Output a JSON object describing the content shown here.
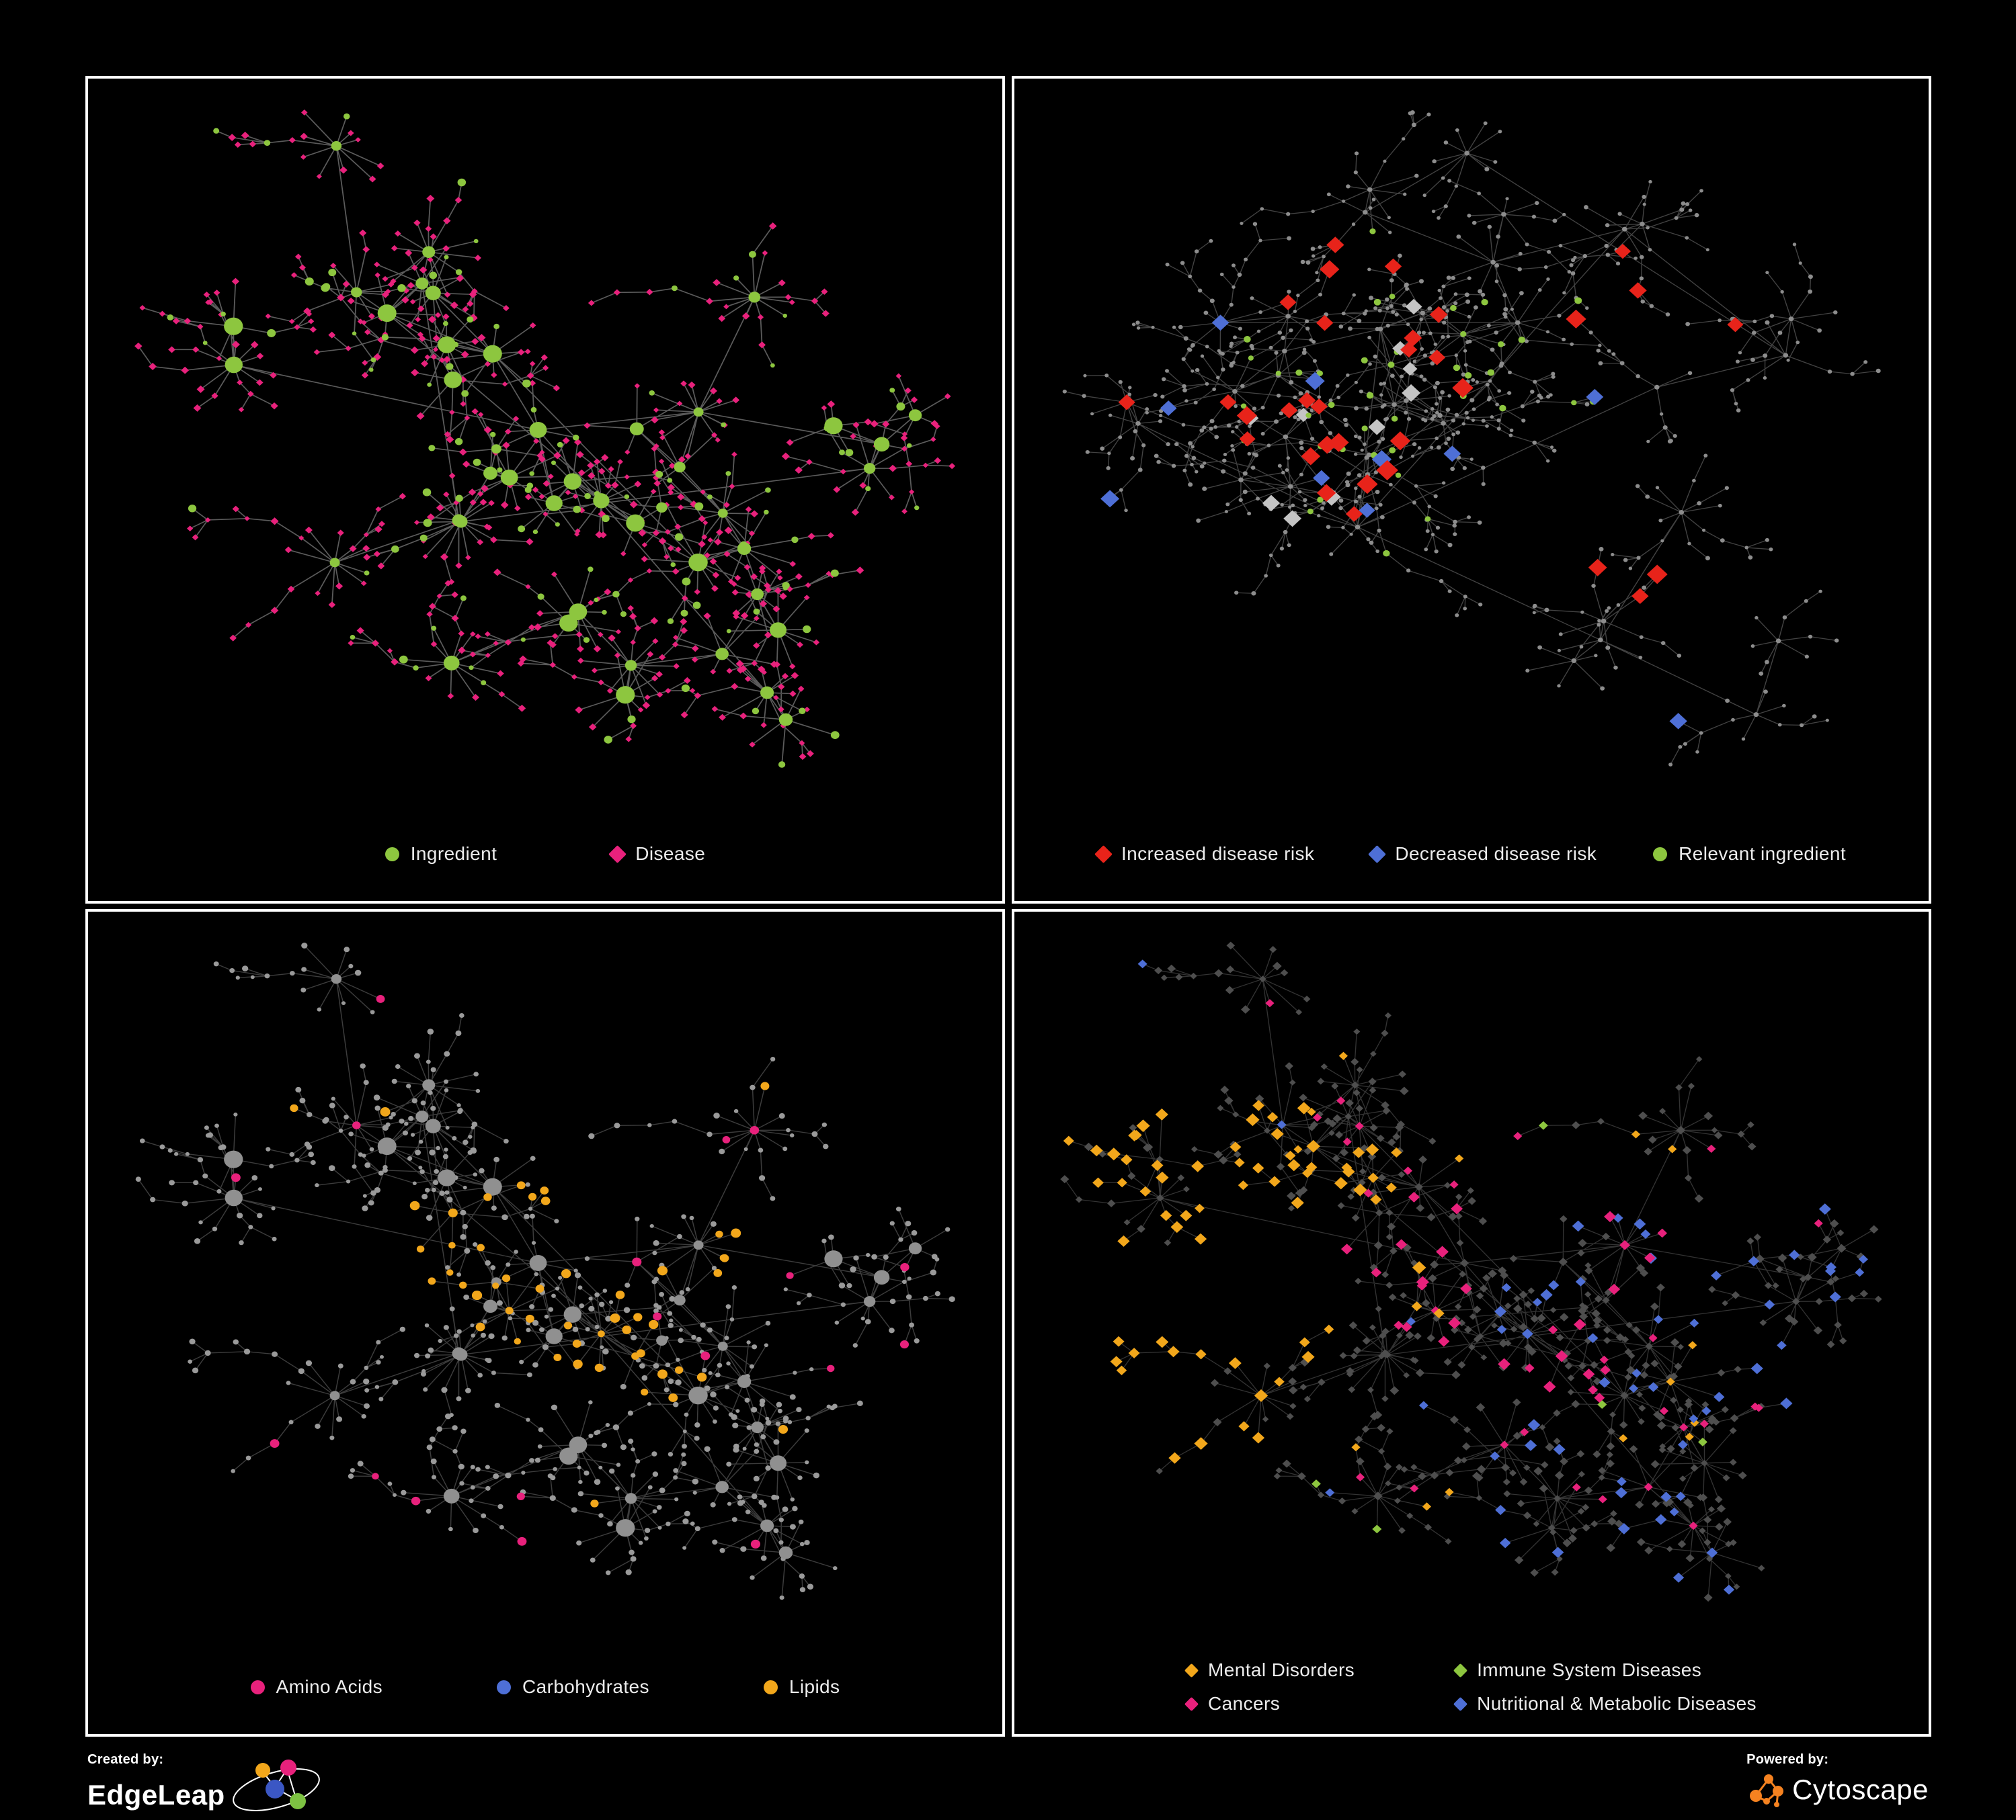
{
  "colors": {
    "background": "#000000",
    "panel_border": "#ffffff",
    "green": "#8dc63f",
    "pink": "#e8217c",
    "red": "#e8231a",
    "blue": "#4e6fd6",
    "orange": "#f2a71b",
    "silver": "#c4c4c4",
    "gray_node": "#9a9a9a",
    "dark_gray_node": "#4e4e4e",
    "legend_text": "#ececec",
    "cytoscape_orange": "#f58220"
  },
  "panels": [
    {
      "name": "ingredient-disease",
      "legend": [
        {
          "label": "Ingredient",
          "shape": "circle",
          "color": "#8dc63f"
        },
        {
          "label": "Disease",
          "shape": "diamond",
          "color": "#e8217c"
        }
      ]
    },
    {
      "name": "disease-risk",
      "legend": [
        {
          "label": "Increased disease risk",
          "shape": "diamond",
          "color": "#e8231a"
        },
        {
          "label": "Decreased disease risk",
          "shape": "diamond",
          "color": "#4e6fd6"
        },
        {
          "label": "Relevant ingredient",
          "shape": "circle",
          "color": "#8dc63f"
        }
      ]
    },
    {
      "name": "macronutrients",
      "legend": [
        {
          "label": "Amino Acids",
          "shape": "circle",
          "color": "#e8217c"
        },
        {
          "label": "Carbohydrates",
          "shape": "circle",
          "color": "#4e6fd6"
        },
        {
          "label": "Lipids",
          "shape": "circle",
          "color": "#f2a71b"
        }
      ]
    },
    {
      "name": "disease-classes",
      "legend": [
        {
          "label": "Mental Disorders",
          "shape": "diamond",
          "color": "#f2a71b"
        },
        {
          "label": "Immune System Diseases",
          "shape": "diamond",
          "color": "#8dc63f"
        },
        {
          "label": "Cancers",
          "shape": "diamond",
          "color": "#e8217c"
        },
        {
          "label": "Nutritional & Metabolic Diseases",
          "shape": "diamond",
          "color": "#4e6fd6"
        }
      ]
    }
  ],
  "footer": {
    "created_by": "Created by:",
    "brand_left": "EdgeLeap",
    "powered_by": "Powered by:",
    "brand_right": "Cytoscape"
  },
  "networks": {
    "topology": {
      "20124": {
        "clusters": 7,
        "hubs": 44,
        "spread": 150,
        "hubR": [
          5.5,
          11
        ],
        "leafMin": 4,
        "leafMax": 13,
        "leafDist": 33,
        "leafR": [
          2.0,
          3.1
        ],
        "chainP": 0.3,
        "chainMax": 3,
        "extraLinks": 6
      },
      "7341": {
        "clusters": 7,
        "hubs": 40,
        "spread": 170,
        "hubR": [
          2.5,
          3.5
        ],
        "leafMin": 3,
        "leafMax": 9,
        "leafDist": 36,
        "leafR": [
          1.8,
          2.5
        ],
        "chainP": 0.55,
        "chainMax": 5,
        "extraLinks": 4
      }
    },
    "panels": [
      {
        "seed": 20124,
        "style": "ingredient_disease"
      },
      {
        "seed": 7341,
        "style": "risk"
      },
      {
        "seed": 20124,
        "style": "macro"
      },
      {
        "seed": 20124,
        "style": "classes"
      }
    ]
  }
}
